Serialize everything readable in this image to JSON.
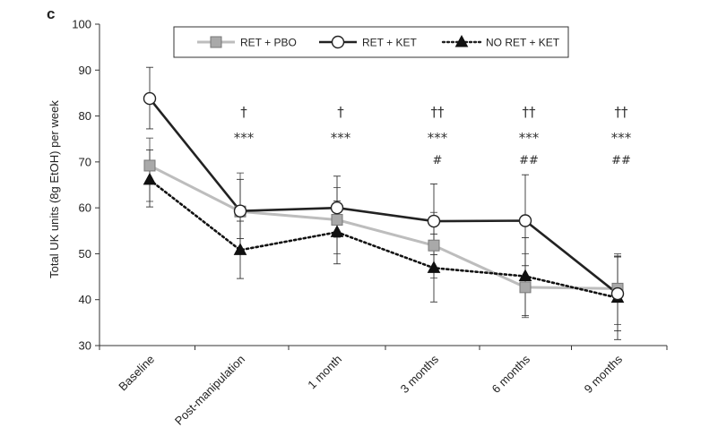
{
  "panel_label": "c",
  "chart_data": {
    "type": "line",
    "ylabel": "Total UK units (8g EtOH) per week",
    "xlabel": "",
    "ylim": [
      30,
      100
    ],
    "yticks": [
      30,
      40,
      50,
      60,
      70,
      80,
      90,
      100
    ],
    "categories": [
      "Baseline",
      "Post-manipulation",
      "1 month",
      "3 months",
      "6 months",
      "9 months"
    ],
    "legend_position": "top-center",
    "series": [
      {
        "name": "RET + PBO",
        "color": "#b8b8b8",
        "marker": "square",
        "line_style": "solid",
        "values": [
          69.2,
          59.2,
          57.4,
          51.8,
          42.7,
          42.4
        ],
        "error": [
          [
            61.4,
            75.2
          ],
          [
            51.0,
            67.6
          ],
          [
            50.0,
            64.4
          ],
          [
            44.7,
            59.0
          ],
          [
            36.1,
            50.0
          ],
          [
            34.6,
            50.0
          ]
        ]
      },
      {
        "name": "RET + KET",
        "color": "#222222",
        "marker": "circle",
        "line_style": "solid",
        "values": [
          83.8,
          59.3,
          60.0,
          57.1,
          57.2,
          41.3
        ],
        "error": [
          [
            77.2,
            90.6
          ],
          [
            53.3,
            66.2
          ],
          [
            53.6,
            66.9
          ],
          [
            49.8,
            65.2
          ],
          [
            47.4,
            67.2
          ],
          [
            33.2,
            49.3
          ]
        ]
      },
      {
        "name": "NO RET + KET",
        "color": "#111111",
        "marker": "triangle",
        "line_style": "dotted",
        "values": [
          66.1,
          50.8,
          54.7,
          46.9,
          45.1,
          40.4
        ],
        "error": [
          [
            60.2,
            72.6
          ],
          [
            44.6,
            57.1
          ],
          [
            47.8,
            61.5
          ],
          [
            39.5,
            54.3
          ],
          [
            36.5,
            53.5
          ],
          [
            31.3,
            49.5
          ]
        ]
      }
    ],
    "annotations": [
      {
        "category": "1 month",
        "lines": [
          "†",
          "***"
        ]
      },
      {
        "category": "3 months",
        "lines": [
          "††",
          "***",
          "#"
        ]
      },
      {
        "category": "6 months",
        "lines": [
          "††",
          "***",
          "##"
        ]
      },
      {
        "category": "9 months",
        "lines": [
          "††",
          "***",
          "##"
        ]
      },
      {
        "category": "Post-manipulation",
        "lines": [
          "†",
          "***"
        ]
      }
    ]
  }
}
